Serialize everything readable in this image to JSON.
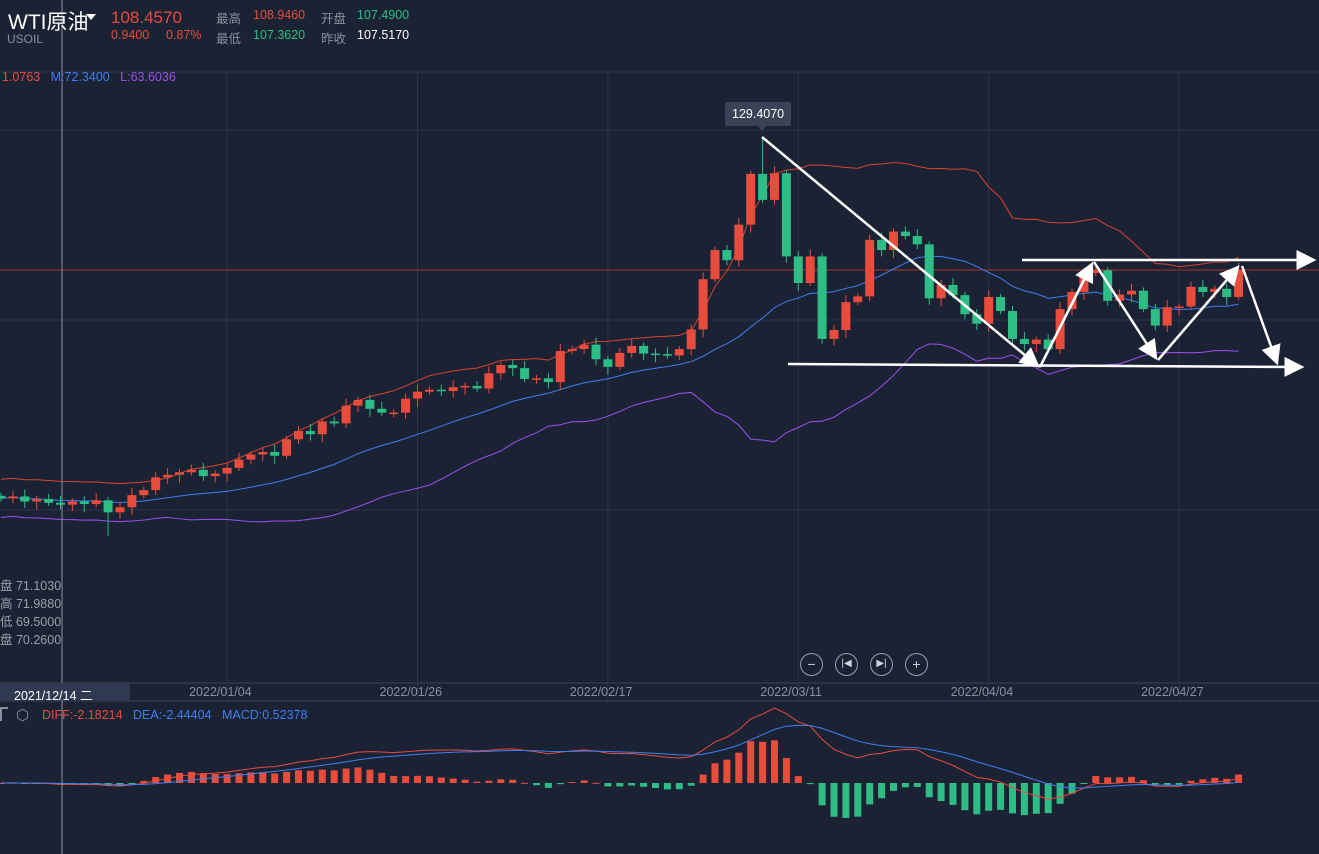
{
  "header": {
    "title": "WTI原油",
    "symbol": "USOIL",
    "price": "108.4570",
    "change": "0.9400",
    "change_pct": "0.87%",
    "high_label": "最高",
    "high": "108.9460",
    "open_label": "开盘",
    "open": "107.4900",
    "low_label": "最低",
    "low": "107.3620",
    "prev_label": "昨收",
    "prev_close": "107.5170"
  },
  "boll_legend": {
    "u": "1.0763",
    "m": "M:72.3400",
    "l": "L:63.6036"
  },
  "crosshair_info": [
    "盘 71.1030",
    "高 71.9880",
    "低 69.5000",
    "盘 70.2600"
  ],
  "crosshair_date": "2021/12/14 二",
  "controls": [
    "zoom-out",
    "prev",
    "next",
    "zoom-in"
  ],
  "macd_legend": {
    "diff": "DIFF:-2.18214",
    "dea": "DEA:-2.44404",
    "macd": "MACD:0.52378"
  },
  "colors": {
    "up": "#e84c3d",
    "down": "#2dbd85",
    "mid": "#3f7ef0",
    "lower": "#9b4ff0",
    "upper": "#d9442f"
  },
  "chart_data": {
    "type": "candlestick",
    "x_tick_labels": [
      "2022/01/04",
      "2022/01/26",
      "2022/02/17",
      "2022/03/11",
      "2022/04/04",
      "2022/04/27"
    ],
    "x_tick_index": [
      19,
      35,
      51,
      67,
      83,
      99
    ],
    "peak_label": "129.4070",
    "peak_index": 64,
    "peak_high": 129.407,
    "last_price": 108.457,
    "ylim": [
      58,
      150
    ],
    "close": [
      72.5,
      72.8,
      72.0,
      72.4,
      71.8,
      71.5,
      72.0,
      71.6,
      72.2,
      70.3,
      71.1,
      73.0,
      73.8,
      75.8,
      76.2,
      76.6,
      77.0,
      76.0,
      76.4,
      77.3,
      78.6,
      79.4,
      79.8,
      79.2,
      81.8,
      83.1,
      82.6,
      84.6,
      84.3,
      87.1,
      88.0,
      86.6,
      86.0,
      86.0,
      88.2,
      89.3,
      89.6,
      89.4,
      90.0,
      90.2,
      89.8,
      92.2,
      93.5,
      93.0,
      91.3,
      91.4,
      90.8,
      95.7,
      96.0,
      96.7,
      94.4,
      93.2,
      95.4,
      96.5,
      95.3,
      95.2,
      95.0,
      96.0,
      99.1,
      107.0,
      111.6,
      110.0,
      115.6,
      123.6,
      119.5,
      123.7,
      110.6,
      106.4,
      110.6,
      97.6,
      99.0,
      103.4,
      104.3,
      113.2,
      111.6,
      114.5,
      113.8,
      112.5,
      104.0,
      106.1,
      104.5,
      101.5,
      100.0,
      104.2,
      102.0,
      97.6,
      96.8,
      97.5,
      96.0,
      102.3,
      105.0,
      108.0,
      108.4,
      103.6,
      104.6,
      105.2,
      102.3,
      99.7,
      102.6,
      102.7,
      105.8,
      105.0,
      105.5,
      104.2,
      108.5
    ],
    "indicators": [
      "BOLL(20,2)",
      "MACD(12,26,9)"
    ]
  }
}
